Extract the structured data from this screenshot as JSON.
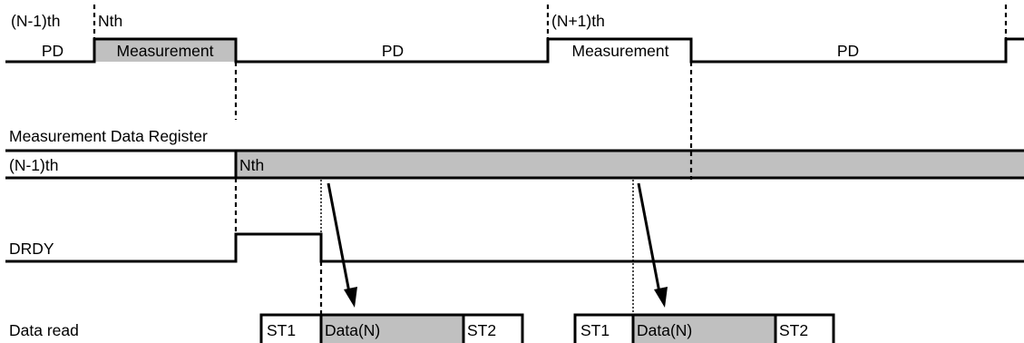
{
  "top_row": {
    "prev_label": "(N-1)th",
    "nth_label": "Nth",
    "next_label": "(N+1)th",
    "pd_1": "PD",
    "measurement_1": "Measurement",
    "pd_2": "PD",
    "measurement_2": "Measurement",
    "pd_3": "PD"
  },
  "register": {
    "title": "Measurement Data Register",
    "prev_label": "(N-1)th",
    "nth_label": "Nth"
  },
  "drdy": {
    "label": "DRDY"
  },
  "data_read": {
    "label": "Data read",
    "groups": [
      {
        "st1": "ST1",
        "data": "Data(N)",
        "st2": "ST2"
      },
      {
        "st1": "ST1",
        "data": "Data(N)",
        "st2": "ST2"
      }
    ]
  },
  "colors": {
    "shade": "#c0c0c0",
    "line": "#000000"
  }
}
